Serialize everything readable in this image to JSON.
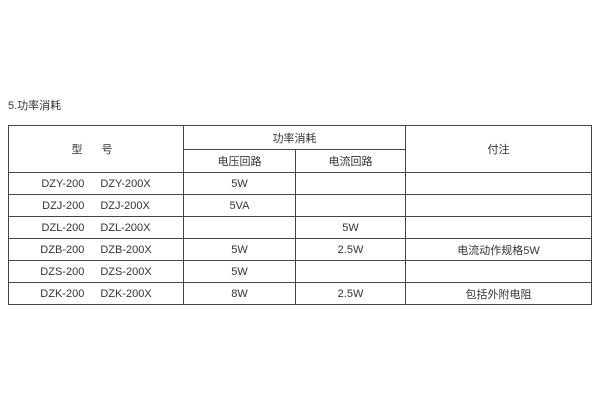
{
  "page": {
    "heading": "5.功率消耗"
  },
  "table": {
    "header": {
      "model": "型 号",
      "power_group": "功率消耗",
      "voltage_circuit": "电压回路",
      "current_circuit": "电流回路",
      "note": "付注"
    },
    "rows": [
      {
        "model_a": "DZY-200",
        "model_b": "DZY-200X",
        "voltage": "5W",
        "current": "",
        "note": ""
      },
      {
        "model_a": "DZJ-200",
        "model_b": "DZJ-200X",
        "voltage": "5VA",
        "current": "",
        "note": ""
      },
      {
        "model_a": "DZL-200",
        "model_b": "DZL-200X",
        "voltage": "",
        "current": "5W",
        "note": ""
      },
      {
        "model_a": "DZB-200",
        "model_b": "DZB-200X",
        "voltage": "5W",
        "current": "2.5W",
        "note": "电流动作规格5W"
      },
      {
        "model_a": "DZS-200",
        "model_b": "DZS-200X",
        "voltage": "5W",
        "current": "",
        "note": ""
      },
      {
        "model_a": "DZK-200",
        "model_b": "DZK-200X",
        "voltage": "8W",
        "current": "2.5W",
        "note": "包括外附电阻"
      }
    ]
  },
  "colors": {
    "border": "#444444",
    "text": "#333333",
    "background": "#ffffff"
  }
}
